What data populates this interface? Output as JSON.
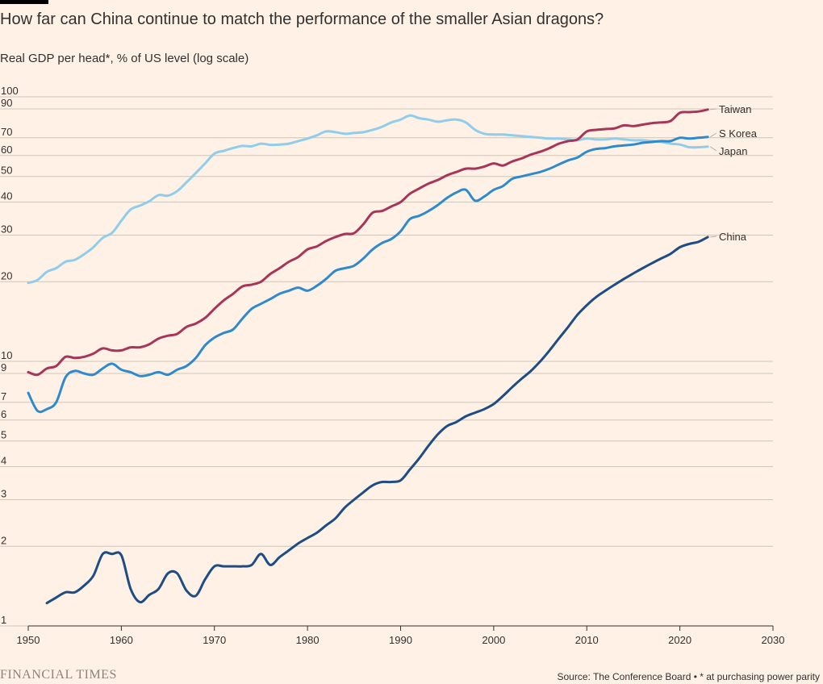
{
  "title": "How far can China continue to match the performance of the smaller Asian dragons?",
  "subtitle": "Real GDP per head*, % of US level (log scale)",
  "footer": {
    "brand": "FINANCIAL TIMES",
    "source": "Source: The Conference Board • * at purchasing power parity"
  },
  "chart_data": {
    "type": "line",
    "title": "How far can China continue to match the performance of the smaller Asian dragons?",
    "ylabel": "Real GDP per head*, % of US level (log scale)",
    "yscale": "log",
    "xlim": [
      1950,
      2030
    ],
    "ylim": [
      1,
      100
    ],
    "grid": true,
    "legend": "direct labels at line ends",
    "x_ticks": [
      1950,
      1960,
      1970,
      1980,
      1990,
      2000,
      2010,
      2020,
      2030
    ],
    "y_ticks": [
      1,
      2,
      3,
      4,
      5,
      6,
      7,
      9,
      10,
      20,
      30,
      40,
      50,
      60,
      70,
      90,
      100
    ],
    "series": [
      {
        "name": "Japan",
        "color": "#8FCDEB",
        "points": [
          [
            1950,
            19.8
          ],
          [
            1951,
            20.3
          ],
          [
            1952,
            21.8
          ],
          [
            1953,
            22.5
          ],
          [
            1954,
            23.8
          ],
          [
            1955,
            24.2
          ],
          [
            1956,
            25.4
          ],
          [
            1957,
            27.0
          ],
          [
            1958,
            29.3
          ],
          [
            1959,
            30.6
          ],
          [
            1960,
            34.0
          ],
          [
            1961,
            37.5
          ],
          [
            1962,
            38.8
          ],
          [
            1963,
            40.3
          ],
          [
            1964,
            42.5
          ],
          [
            1965,
            42.3
          ],
          [
            1966,
            44.0
          ],
          [
            1967,
            47.5
          ],
          [
            1968,
            51.5
          ],
          [
            1969,
            56.0
          ],
          [
            1970,
            61.0
          ],
          [
            1971,
            62.5
          ],
          [
            1972,
            64.0
          ],
          [
            1973,
            65.2
          ],
          [
            1974,
            65.0
          ],
          [
            1975,
            66.5
          ],
          [
            1976,
            65.8
          ],
          [
            1977,
            66.0
          ],
          [
            1978,
            66.5
          ],
          [
            1979,
            68.0
          ],
          [
            1980,
            69.5
          ],
          [
            1981,
            71.5
          ],
          [
            1982,
            74.0
          ],
          [
            1983,
            73.5
          ],
          [
            1984,
            72.5
          ],
          [
            1985,
            73.0
          ],
          [
            1986,
            73.5
          ],
          [
            1987,
            75.0
          ],
          [
            1988,
            77.0
          ],
          [
            1989,
            80.0
          ],
          [
            1990,
            82.0
          ],
          [
            1991,
            85.0
          ],
          [
            1992,
            83.0
          ],
          [
            1993,
            82.0
          ],
          [
            1994,
            80.5
          ],
          [
            1995,
            81.5
          ],
          [
            1996,
            82.0
          ],
          [
            1997,
            80.0
          ],
          [
            1998,
            75.0
          ],
          [
            1999,
            72.5
          ],
          [
            2000,
            72.0
          ],
          [
            2001,
            72.0
          ],
          [
            2002,
            71.5
          ],
          [
            2003,
            71.0
          ],
          [
            2004,
            70.5
          ],
          [
            2005,
            70.0
          ],
          [
            2006,
            69.5
          ],
          [
            2007,
            69.5
          ],
          [
            2008,
            69.0
          ],
          [
            2009,
            68.5
          ],
          [
            2010,
            69.5
          ],
          [
            2011,
            69.0
          ],
          [
            2012,
            69.0
          ],
          [
            2013,
            69.5
          ],
          [
            2014,
            69.0
          ],
          [
            2015,
            68.5
          ],
          [
            2016,
            68.5
          ],
          [
            2017,
            68.0
          ],
          [
            2018,
            67.5
          ],
          [
            2019,
            66.5
          ],
          [
            2020,
            66.0
          ],
          [
            2021,
            64.5
          ],
          [
            2022,
            64.5
          ],
          [
            2023,
            64.8
          ]
        ]
      },
      {
        "name": "Taiwan",
        "color": "#A7355A",
        "points": [
          [
            1950,
            9.1
          ],
          [
            1951,
            8.9
          ],
          [
            1952,
            9.4
          ],
          [
            1953,
            9.6
          ],
          [
            1954,
            10.4
          ],
          [
            1955,
            10.3
          ],
          [
            1956,
            10.4
          ],
          [
            1957,
            10.7
          ],
          [
            1958,
            11.2
          ],
          [
            1959,
            11.0
          ],
          [
            1960,
            11.0
          ],
          [
            1961,
            11.3
          ],
          [
            1962,
            11.3
          ],
          [
            1963,
            11.6
          ],
          [
            1964,
            12.2
          ],
          [
            1965,
            12.5
          ],
          [
            1966,
            12.7
          ],
          [
            1967,
            13.5
          ],
          [
            1968,
            13.9
          ],
          [
            1969,
            14.6
          ],
          [
            1970,
            15.8
          ],
          [
            1971,
            17.0
          ],
          [
            1972,
            18.0
          ],
          [
            1973,
            19.2
          ],
          [
            1974,
            19.5
          ],
          [
            1975,
            20.0
          ],
          [
            1976,
            21.4
          ],
          [
            1977,
            22.5
          ],
          [
            1978,
            23.8
          ],
          [
            1979,
            24.8
          ],
          [
            1980,
            26.5
          ],
          [
            1981,
            27.2
          ],
          [
            1982,
            28.5
          ],
          [
            1983,
            29.5
          ],
          [
            1984,
            30.3
          ],
          [
            1985,
            30.5
          ],
          [
            1986,
            33.0
          ],
          [
            1987,
            36.5
          ],
          [
            1988,
            37.0
          ],
          [
            1989,
            38.5
          ],
          [
            1990,
            40.0
          ],
          [
            1991,
            43.0
          ],
          [
            1992,
            45.0
          ],
          [
            1993,
            47.0
          ],
          [
            1994,
            48.5
          ],
          [
            1995,
            50.5
          ],
          [
            1996,
            52.0
          ],
          [
            1997,
            53.5
          ],
          [
            1998,
            53.5
          ],
          [
            1999,
            54.5
          ],
          [
            2000,
            56.0
          ],
          [
            2001,
            55.0
          ],
          [
            2002,
            57.0
          ],
          [
            2003,
            58.5
          ],
          [
            2004,
            60.5
          ],
          [
            2005,
            62.0
          ],
          [
            2006,
            64.0
          ],
          [
            2007,
            66.5
          ],
          [
            2008,
            68.0
          ],
          [
            2009,
            69.0
          ],
          [
            2010,
            74.0
          ],
          [
            2011,
            75.0
          ],
          [
            2012,
            75.5
          ],
          [
            2013,
            76.0
          ],
          [
            2014,
            78.0
          ],
          [
            2015,
            77.5
          ],
          [
            2016,
            78.5
          ],
          [
            2017,
            79.5
          ],
          [
            2018,
            80.0
          ],
          [
            2019,
            81.0
          ],
          [
            2020,
            87.0
          ],
          [
            2021,
            87.5
          ],
          [
            2022,
            88.0
          ],
          [
            2023,
            89.5
          ]
        ]
      },
      {
        "name": "S Korea",
        "color": "#2E8ACD",
        "points": [
          [
            1950,
            7.6
          ],
          [
            1951,
            6.5
          ],
          [
            1952,
            6.6
          ],
          [
            1953,
            7.0
          ],
          [
            1954,
            8.7
          ],
          [
            1955,
            9.2
          ],
          [
            1956,
            9.0
          ],
          [
            1957,
            8.9
          ],
          [
            1958,
            9.4
          ],
          [
            1959,
            9.8
          ],
          [
            1960,
            9.3
          ],
          [
            1961,
            9.1
          ],
          [
            1962,
            8.8
          ],
          [
            1963,
            8.9
          ],
          [
            1964,
            9.1
          ],
          [
            1965,
            8.9
          ],
          [
            1966,
            9.3
          ],
          [
            1967,
            9.6
          ],
          [
            1968,
            10.3
          ],
          [
            1969,
            11.5
          ],
          [
            1970,
            12.3
          ],
          [
            1971,
            12.8
          ],
          [
            1972,
            13.2
          ],
          [
            1973,
            14.5
          ],
          [
            1974,
            15.8
          ],
          [
            1975,
            16.5
          ],
          [
            1976,
            17.2
          ],
          [
            1977,
            18.0
          ],
          [
            1978,
            18.5
          ],
          [
            1979,
            19.0
          ],
          [
            1980,
            18.5
          ],
          [
            1981,
            19.3
          ],
          [
            1982,
            20.5
          ],
          [
            1983,
            22.0
          ],
          [
            1984,
            22.5
          ],
          [
            1985,
            23.0
          ],
          [
            1986,
            24.5
          ],
          [
            1987,
            26.5
          ],
          [
            1988,
            28.0
          ],
          [
            1989,
            29.0
          ],
          [
            1990,
            31.0
          ],
          [
            1991,
            34.5
          ],
          [
            1992,
            35.5
          ],
          [
            1993,
            37.0
          ],
          [
            1994,
            39.0
          ],
          [
            1995,
            41.5
          ],
          [
            1996,
            43.5
          ],
          [
            1997,
            44.5
          ],
          [
            1998,
            40.5
          ],
          [
            1999,
            42.0
          ],
          [
            2000,
            44.5
          ],
          [
            2001,
            46.0
          ],
          [
            2002,
            49.0
          ],
          [
            2003,
            50.0
          ],
          [
            2004,
            51.0
          ],
          [
            2005,
            52.0
          ],
          [
            2006,
            53.5
          ],
          [
            2007,
            55.5
          ],
          [
            2008,
            57.5
          ],
          [
            2009,
            59.0
          ],
          [
            2010,
            62.0
          ],
          [
            2011,
            63.5
          ],
          [
            2012,
            64.0
          ],
          [
            2013,
            65.0
          ],
          [
            2014,
            65.5
          ],
          [
            2015,
            66.0
          ],
          [
            2016,
            67.0
          ],
          [
            2017,
            67.5
          ],
          [
            2018,
            68.0
          ],
          [
            2019,
            68.0
          ],
          [
            2020,
            70.0
          ],
          [
            2021,
            69.5
          ],
          [
            2022,
            70.0
          ],
          [
            2023,
            70.5
          ]
        ]
      },
      {
        "name": "China",
        "color": "#1E4D86",
        "points": [
          [
            1952,
            1.22
          ],
          [
            1953,
            1.28
          ],
          [
            1954,
            1.34
          ],
          [
            1955,
            1.34
          ],
          [
            1956,
            1.42
          ],
          [
            1957,
            1.55
          ],
          [
            1958,
            1.87
          ],
          [
            1959,
            1.87
          ],
          [
            1960,
            1.85
          ],
          [
            1961,
            1.38
          ],
          [
            1962,
            1.23
          ],
          [
            1963,
            1.31
          ],
          [
            1964,
            1.38
          ],
          [
            1965,
            1.58
          ],
          [
            1966,
            1.58
          ],
          [
            1967,
            1.36
          ],
          [
            1968,
            1.3
          ],
          [
            1969,
            1.5
          ],
          [
            1970,
            1.68
          ],
          [
            1971,
            1.68
          ],
          [
            1972,
            1.68
          ],
          [
            1973,
            1.68
          ],
          [
            1974,
            1.7
          ],
          [
            1975,
            1.87
          ],
          [
            1976,
            1.7
          ],
          [
            1977,
            1.82
          ],
          [
            1978,
            1.93
          ],
          [
            1979,
            2.05
          ],
          [
            1980,
            2.15
          ],
          [
            1981,
            2.25
          ],
          [
            1982,
            2.4
          ],
          [
            1983,
            2.55
          ],
          [
            1984,
            2.8
          ],
          [
            1985,
            3.0
          ],
          [
            1986,
            3.2
          ],
          [
            1987,
            3.4
          ],
          [
            1988,
            3.5
          ],
          [
            1989,
            3.5
          ],
          [
            1990,
            3.55
          ],
          [
            1991,
            3.9
          ],
          [
            1992,
            4.3
          ],
          [
            1993,
            4.8
          ],
          [
            1994,
            5.3
          ],
          [
            1995,
            5.7
          ],
          [
            1996,
            5.9
          ],
          [
            1997,
            6.2
          ],
          [
            1998,
            6.4
          ],
          [
            1999,
            6.6
          ],
          [
            2000,
            6.9
          ],
          [
            2001,
            7.4
          ],
          [
            2002,
            8.0
          ],
          [
            2003,
            8.6
          ],
          [
            2004,
            9.2
          ],
          [
            2005,
            10.0
          ],
          [
            2006,
            11.0
          ],
          [
            2007,
            12.2
          ],
          [
            2008,
            13.5
          ],
          [
            2009,
            15.0
          ],
          [
            2010,
            16.3
          ],
          [
            2011,
            17.5
          ],
          [
            2012,
            18.5
          ],
          [
            2013,
            19.5
          ],
          [
            2014,
            20.5
          ],
          [
            2015,
            21.5
          ],
          [
            2016,
            22.5
          ],
          [
            2017,
            23.5
          ],
          [
            2018,
            24.5
          ],
          [
            2019,
            25.5
          ],
          [
            2020,
            27.0
          ],
          [
            2021,
            27.8
          ],
          [
            2022,
            28.3
          ],
          [
            2023,
            29.5
          ]
        ]
      }
    ],
    "end_labels": [
      {
        "series": "Taiwan",
        "label": "Taiwan"
      },
      {
        "series": "S Korea",
        "label": "S Korea"
      },
      {
        "series": "Japan",
        "label": "Japan"
      },
      {
        "series": "China",
        "label": "China"
      }
    ]
  }
}
